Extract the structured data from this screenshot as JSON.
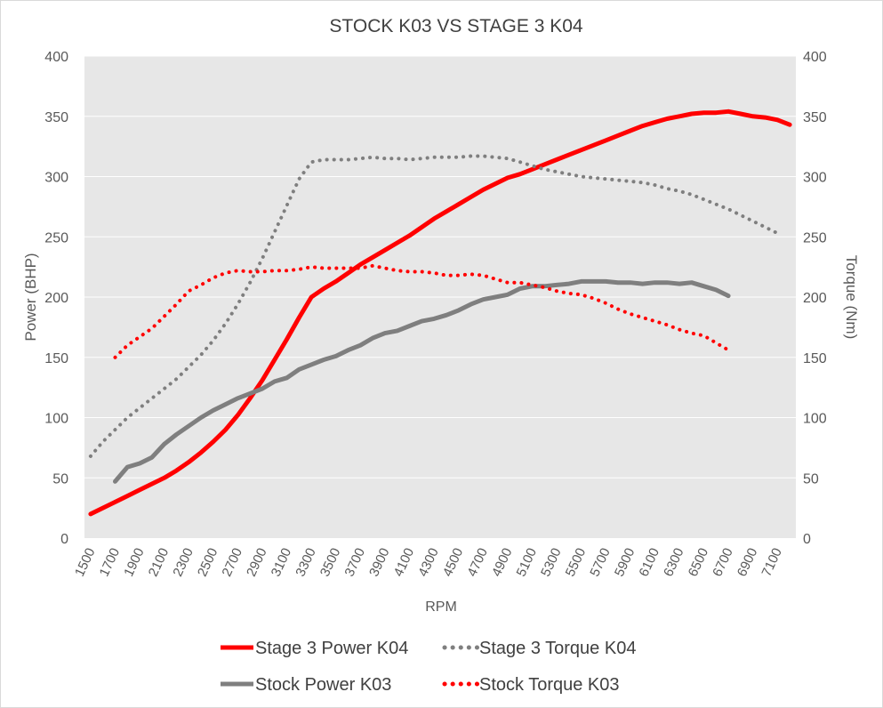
{
  "chart_data": {
    "type": "line",
    "title": "STOCK K03 VS STAGE 3 K04",
    "xlabel": "RPM",
    "ylabel": "Power (BHP)",
    "y2label": "Torque (Nm)",
    "ylim": [
      0,
      400
    ],
    "y2lim": [
      0,
      400
    ],
    "yticks": [
      0,
      50,
      100,
      150,
      200,
      250,
      300,
      350,
      400
    ],
    "xticks": [
      1500,
      1700,
      1900,
      2100,
      2300,
      2500,
      2700,
      2900,
      3100,
      3300,
      3500,
      3700,
      3900,
      4100,
      4300,
      4500,
      4700,
      4900,
      5100,
      5300,
      5500,
      5700,
      5900,
      6100,
      6300,
      6500,
      6700,
      6900,
      7100
    ],
    "x_range": [
      1500,
      7200
    ],
    "x_step": 100,
    "grid": true,
    "plot_background": "#e7e7e7",
    "legend_position": "bottom",
    "series": [
      {
        "name": "Stage 3 Power K04",
        "axis": "left",
        "color": "#ff0000",
        "style": "solid",
        "x_start": 1500,
        "values": [
          20,
          25,
          30,
          35,
          40,
          45,
          50,
          56,
          63,
          71,
          80,
          90,
          102,
          116,
          131,
          148,
          165,
          183,
          200,
          207,
          213,
          220,
          227,
          233,
          239,
          245,
          251,
          258,
          265,
          271,
          277,
          283,
          289,
          294,
          299,
          302,
          306,
          310,
          314,
          318,
          322,
          326,
          330,
          334,
          338,
          342,
          345,
          348,
          350,
          352,
          353,
          353,
          354,
          352,
          350,
          349,
          347,
          343
        ]
      },
      {
        "name": "Stage 3 Torque K04",
        "axis": "right",
        "color": "#7f7f7f",
        "style": "dotted",
        "x_start": 1500,
        "values": [
          68,
          80,
          90,
          100,
          108,
          116,
          124,
          132,
          142,
          152,
          164,
          178,
          194,
          212,
          232,
          254,
          276,
          298,
          312,
          314,
          314,
          314,
          315,
          316,
          315,
          315,
          314,
          315,
          316,
          316,
          316,
          317,
          317,
          316,
          315,
          312,
          309,
          306,
          304,
          302,
          300,
          299,
          298,
          297,
          296,
          295,
          293,
          290,
          288,
          285,
          281,
          277,
          273,
          268,
          263,
          258,
          253
        ]
      },
      {
        "name": "Stock Power K03",
        "axis": "left",
        "color": "#7f7f7f",
        "style": "solid",
        "x_start": 1700,
        "values": [
          47,
          59,
          62,
          67,
          78,
          86,
          93,
          100,
          106,
          111,
          116,
          120,
          124,
          130,
          133,
          140,
          144,
          148,
          151,
          156,
          160,
          166,
          170,
          172,
          176,
          180,
          182,
          185,
          189,
          194,
          198,
          200,
          202,
          207,
          209,
          209,
          210,
          211,
          213,
          213,
          213,
          212,
          212,
          211,
          212,
          212,
          211,
          212,
          209,
          206,
          201
        ]
      },
      {
        "name": "Stock Torque K03",
        "axis": "right",
        "color": "#ff0000",
        "style": "dotted",
        "x_start": 1700,
        "values": [
          150,
          160,
          167,
          174,
          184,
          194,
          205,
          210,
          216,
          220,
          222,
          221,
          221,
          222,
          222,
          223,
          225,
          224,
          224,
          224,
          224,
          226,
          224,
          222,
          221,
          221,
          220,
          218,
          218,
          219,
          218,
          215,
          212,
          212,
          210,
          208,
          205,
          203,
          202,
          199,
          195,
          190,
          186,
          183,
          180,
          177,
          173,
          170,
          168,
          162,
          156
        ]
      }
    ]
  }
}
